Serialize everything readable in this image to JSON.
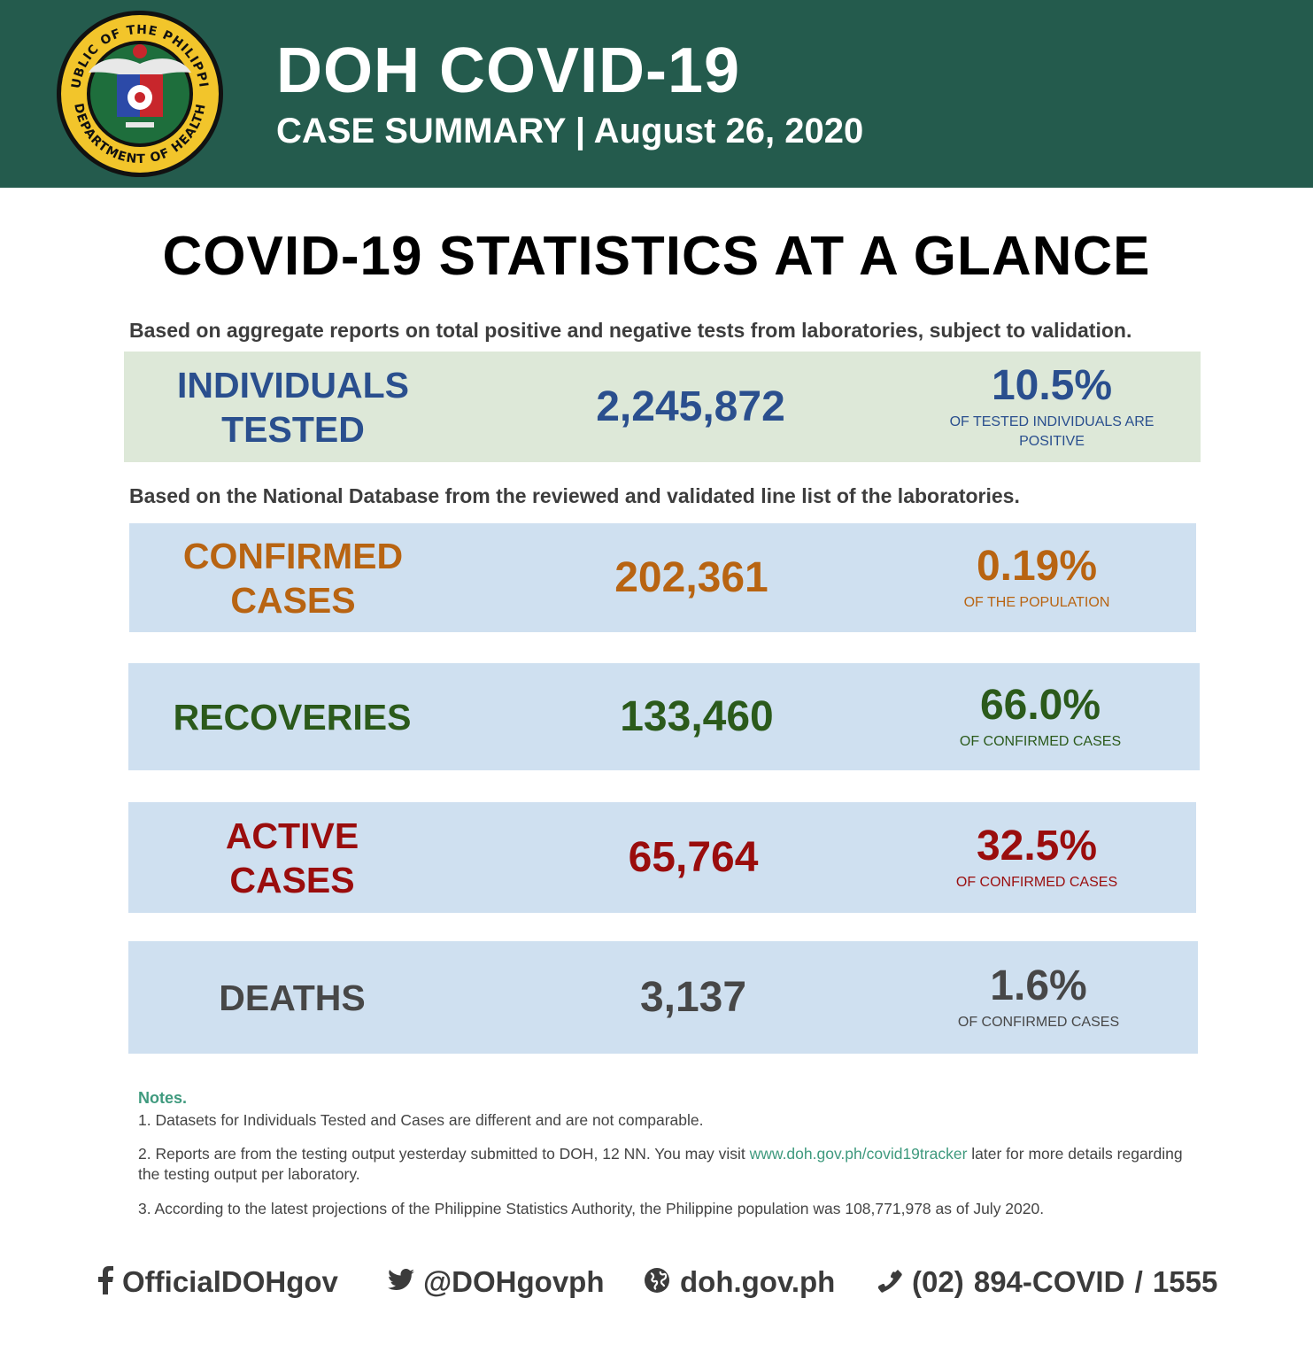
{
  "header": {
    "seal_text_top": "REPUBLIC OF THE PHILIPPINES",
    "seal_text_bottom": "DEPARTMENT OF HEALTH",
    "title": "DOH COVID-19",
    "subtitle": "CASE SUMMARY | August 26, 2020"
  },
  "main_title": "COVID-19 STATISTICS AT A GLANCE",
  "basis_aggregate": "Based on aggregate reports on total positive and negative tests from laboratories, subject to validation.",
  "basis_national": "Based on the National Database from the reviewed and validated line list of the laboratories.",
  "stats": [
    {
      "label_line1": "INDIVIDUALS",
      "label_line2": "TESTED",
      "value": "2,245,872",
      "percent": "10.5%",
      "note": "OF TESTED INDIVIDUALS ARE POSITIVE",
      "color": "#2a4f8e",
      "bg": "#dde8d8"
    },
    {
      "label_line1": "CONFIRMED",
      "label_line2": "CASES",
      "value": "202,361",
      "percent": "0.19%",
      "note": "OF THE POPULATION",
      "color": "#b86412",
      "bg": "#cfe0f0"
    },
    {
      "label_line1": "RECOVERIES",
      "label_line2": "",
      "value": "133,460",
      "percent": "66.0%",
      "note": "OF CONFIRMED CASES",
      "color": "#2b5a1b",
      "bg": "#cfe0f0"
    },
    {
      "label_line1": "ACTIVE",
      "label_line2": "CASES",
      "value": "65,764",
      "percent": "32.5%",
      "note": "OF CONFIRMED CASES",
      "color": "#9a0d0d",
      "bg": "#cfe0f0"
    },
    {
      "label_line1": "DEATHS",
      "label_line2": "",
      "value": "3,137",
      "percent": "1.6%",
      "note": "OF CONFIRMED CASES",
      "color": "#474747",
      "bg": "#cfe0f0"
    }
  ],
  "notes": {
    "title": "Notes.",
    "note1": "1. Datasets for Individuals Tested and Cases are different and are not comparable.",
    "note2_before": "2.  Reports are from the testing output yesterday submitted to DOH, 12 NN. You may visit",
    "note2_link": "www.doh.gov.ph/covid19tracker",
    "note2_after": "later for more details regarding the testing output per laboratory.",
    "note3": "3. According to the latest projections of the Philippine Statistics Authority, the Philippine population was 108,771,978 as of July 2020."
  },
  "footer": {
    "facebook": "OfficialDOHgov",
    "twitter": "@DOHgovph",
    "website": "doh.gov.ph",
    "phone": "(02) 894-COVID  /  1555",
    "icons": [
      "facebook-icon",
      "twitter-icon",
      "globe-icon",
      "phone-icon"
    ]
  }
}
